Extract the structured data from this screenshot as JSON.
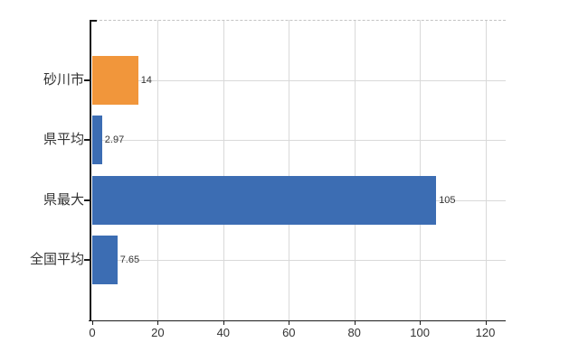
{
  "chart_data": {
    "type": "bar",
    "orientation": "horizontal",
    "title": "",
    "xlabel": "",
    "ylabel": "",
    "categories": [
      "砂川市",
      "県平均",
      "県最大",
      "全国平均"
    ],
    "values": [
      14,
      2.97,
      105,
      7.65
    ],
    "value_labels": [
      "14",
      "2.97",
      "105",
      "7.65"
    ],
    "bar_colors": [
      "#f1963b",
      "#3c6db3",
      "#3c6db3",
      "#3c6db3"
    ],
    "xticks": [
      0,
      20,
      40,
      60,
      80,
      100,
      120
    ],
    "xtick_labels": [
      "0",
      "20",
      "40",
      "60",
      "80",
      "100",
      "120"
    ],
    "xlim": [
      0,
      126.2
    ],
    "grid": true,
    "grid_axis": "both",
    "legend": false
  },
  "colors": {
    "background": "#ffffff",
    "bar_orange": "#f1963b",
    "bar_blue": "#3c6db3",
    "grid": "#d9d9d9",
    "grid_dash": "#c4c4c4",
    "axis": "#1a1a1a",
    "text": "#333333"
  }
}
